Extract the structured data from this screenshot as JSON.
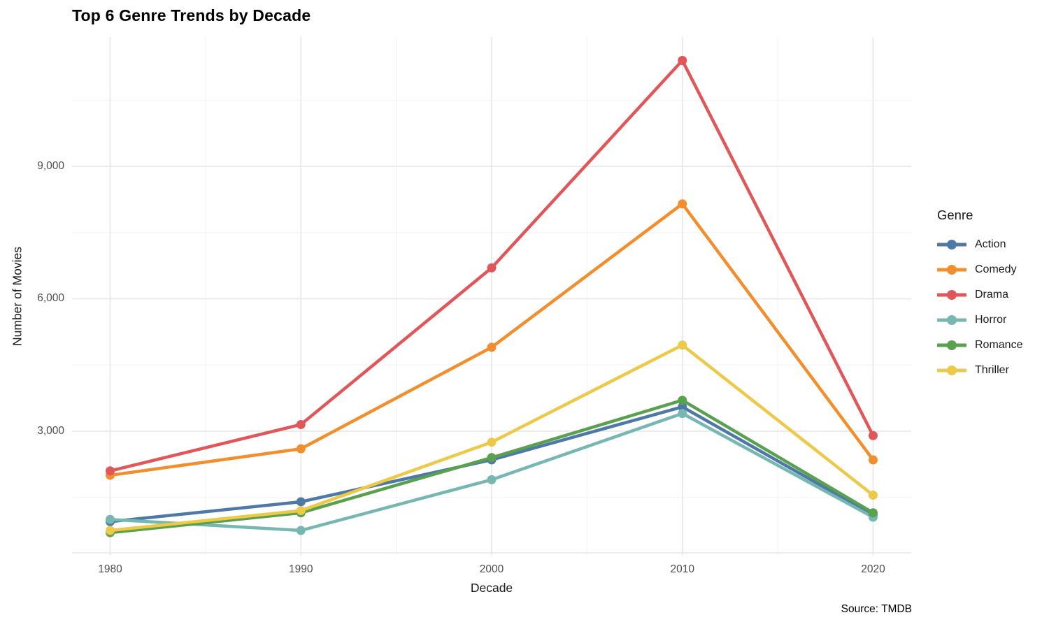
{
  "source_note": "Source: TMDB",
  "colors": {
    "grid_major": "#e7e7e7",
    "grid_minor": "#f2f2f2",
    "axis_line": "#e7e7e7",
    "tick_label": "#4d4d4d",
    "text": "#1a1a1a"
  },
  "chart_data": {
    "type": "line",
    "title": "Top 6 Genre Trends by Decade",
    "xlabel": "Decade",
    "ylabel": "Number of Movies",
    "legend_title": "Genre",
    "legend_position": "right",
    "grid": "on",
    "x": [
      1980,
      1990,
      2000,
      2010,
      2020
    ],
    "x_tick_labels": [
      "1980",
      "1990",
      "2000",
      "2010",
      "2020"
    ],
    "y_ticks": [
      3000,
      6000,
      9000
    ],
    "y_tick_labels": [
      "3,000",
      "6,000",
      "9,000"
    ],
    "x_minor_gridlines": [
      1985,
      1995,
      2005,
      2015
    ],
    "y_minor_gridlines": [
      1500,
      4500,
      7500,
      10500
    ],
    "xlim": [
      1978,
      2022
    ],
    "ylim": [
      180,
      11930
    ],
    "series": [
      {
        "name": "Action",
        "color": "#4E79A7",
        "values": [
          950,
          1400,
          2350,
          3550,
          1100
        ]
      },
      {
        "name": "Comedy",
        "color": "#F28E2B",
        "values": [
          2000,
          2600,
          4900,
          8150,
          2350
        ]
      },
      {
        "name": "Drama",
        "color": "#E15759",
        "values": [
          2100,
          3150,
          6700,
          11400,
          2900
        ]
      },
      {
        "name": "Horror",
        "color": "#76B7B2",
        "values": [
          1000,
          750,
          1900,
          3400,
          1050
        ]
      },
      {
        "name": "Romance",
        "color": "#59A14F",
        "values": [
          700,
          1150,
          2400,
          3700,
          1150
        ]
      },
      {
        "name": "Thriller",
        "color": "#EDC948",
        "values": [
          750,
          1200,
          2750,
          4950,
          1550
        ]
      }
    ]
  }
}
